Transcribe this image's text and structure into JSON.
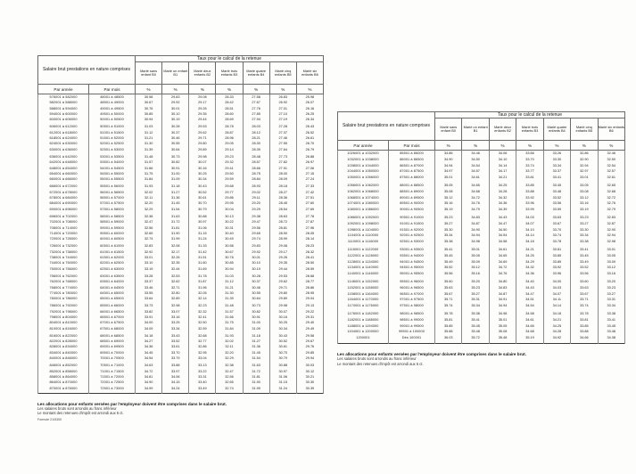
{
  "shared": {
    "salary_header": "Salaire brut prestations en nature comprises",
    "tax_header": "Taux pour le calcul de la retenue",
    "year_label": "Par année",
    "month_label": "Par mois",
    "percent": "%",
    "categories": [
      "Marié sans enfant B0",
      "Marié un enfant B1",
      "Marié deux enfants B2",
      "Marié trois enfants B3",
      "Marié quatre enfants B4",
      "Marié cinq enfants B5",
      "Marié six enfants B6"
    ]
  },
  "footnotes": {
    "line1": "Les allocations pour enfants versées par l'employeur doivent être comprises dans le salaire brut.",
    "line2": "Les salaires bruts sont arrondis au franc inférieur",
    "line3": "Le montant des retenues d'impôt est arrondi aux 5 ct.",
    "formule": "Formule 21/5300"
  },
  "left_table": {
    "rows": [
      [
        "576001 à 582000",
        "48001 à 48500",
        "30.58",
        "29.83",
        "29.08",
        "28.33",
        "27.58",
        "26.83",
        "25.98"
      ],
      [
        "582001 à 588000",
        "48501 à 49000",
        "30.67",
        "29.92",
        "29.17",
        "28.42",
        "27.67",
        "26.92",
        "26.07"
      ],
      [
        "588001 à 594000",
        "49001 à 49500",
        "30.76",
        "30.01",
        "29.26",
        "28.51",
        "27.76",
        "27.01",
        "26.16"
      ],
      [
        "594001 à 600000",
        "49501 à 50000",
        "30.85",
        "30.10",
        "29.35",
        "28.60",
        "27.85",
        "27.10",
        "26.25"
      ],
      [
        "600001 à 606000",
        "50001 à 50500",
        "30.94",
        "30.19",
        "29.44",
        "28.69",
        "27.94",
        "27.19",
        "26.34"
      ],
      [
        "606001 à 612000",
        "50501 à 51000",
        "31.03",
        "30.28",
        "29.53",
        "28.78",
        "28.03",
        "27.28",
        "26.43"
      ],
      [
        "612001 à 618000",
        "51001 à 51500",
        "31.12",
        "30.37",
        "29.62",
        "28.87",
        "28.12",
        "27.37",
        "26.52"
      ],
      [
        "618001 à 624000",
        "51501 à 52000",
        "31.21",
        "30.46",
        "29.71",
        "28.96",
        "28.21",
        "27.46",
        "26.61"
      ],
      [
        "624001 à 630000",
        "52001 à 52500",
        "31.30",
        "30.55",
        "29.80",
        "29.05",
        "28.30",
        "27.55",
        "26.70"
      ],
      [
        "630001 à 636000",
        "52501 à 53000",
        "31.39",
        "30.64",
        "29.89",
        "29.14",
        "28.39",
        "27.64",
        "26.79"
      ],
      [
        "636001 à 642000",
        "53001 à 53500",
        "31.48",
        "30.73",
        "29.98",
        "29.23",
        "28.48",
        "27.73",
        "26.88"
      ],
      [
        "642001 à 648000",
        "53501 à 54000",
        "31.57",
        "30.82",
        "30.07",
        "29.32",
        "28.57",
        "27.82",
        "26.97"
      ],
      [
        "648001 à 654000",
        "54001 à 54500",
        "31.66",
        "30.91",
        "30.16",
        "29.41",
        "28.66",
        "27.91",
        "27.06"
      ],
      [
        "654001 à 660000",
        "54501 à 55000",
        "31.75",
        "31.00",
        "30.25",
        "29.50",
        "28.75",
        "28.00",
        "27.15"
      ],
      [
        "660001 à 666000",
        "55001 à 55500",
        "31.84",
        "31.09",
        "30.34",
        "29.59",
        "28.84",
        "28.09",
        "27.24"
      ],
      [
        "666001 à 672000",
        "55501 à 56000",
        "31.93",
        "31.18",
        "30.43",
        "29.68",
        "28.93",
        "28.18",
        "27.33"
      ],
      [
        "672001 à 678000",
        "56001 à 56500",
        "32.02",
        "31.27",
        "30.52",
        "29.77",
        "29.02",
        "28.27",
        "27.42"
      ],
      [
        "678001 à 684000",
        "56501 à 57000",
        "32.11",
        "31.36",
        "30.61",
        "29.86",
        "29.11",
        "28.36",
        "27.51"
      ],
      [
        "684001 à 690000",
        "57001 à 57500",
        "32.20",
        "31.45",
        "30.70",
        "29.95",
        "29.20",
        "28.45",
        "27.60"
      ],
      [
        "690001 à 696000",
        "57501 à 58000",
        "32.29",
        "31.54",
        "30.79",
        "30.04",
        "29.29",
        "28.54",
        "27.69"
      ],
      [
        "696001 à 702000",
        "58001 à 58500",
        "32.38",
        "31.63",
        "30.88",
        "30.13",
        "29.38",
        "28.63",
        "27.78"
      ],
      [
        "702001 à 708000",
        "58501 à 59000",
        "32.47",
        "31.72",
        "30.97",
        "30.22",
        "29.47",
        "28.72",
        "27.87"
      ],
      [
        "708001 à 714000",
        "59001 à 59500",
        "32.56",
        "31.81",
        "31.06",
        "30.31",
        "29.56",
        "28.81",
        "27.96"
      ],
      [
        "714001 à 720000",
        "59501 à 60000",
        "32.65",
        "31.90",
        "31.15",
        "30.40",
        "29.65",
        "28.90",
        "28.05"
      ],
      [
        "720001 à 726000",
        "60001 à 60500",
        "32.74",
        "31.99",
        "31.24",
        "30.49",
        "29.74",
        "28.99",
        "28.14"
      ],
      [
        "726001 à 732000",
        "60501 à 61000",
        "32.83",
        "32.08",
        "31.33",
        "30.58",
        "29.83",
        "29.08",
        "28.23"
      ],
      [
        "732001 à 738000",
        "61001 à 61500",
        "32.92",
        "32.17",
        "31.42",
        "30.67",
        "29.92",
        "29.17",
        "28.32"
      ],
      [
        "738001 à 744000",
        "61501 à 62000",
        "33.01",
        "32.26",
        "31.51",
        "30.76",
        "30.01",
        "29.26",
        "28.41"
      ],
      [
        "744001 à 750000",
        "62001 à 62500",
        "33.10",
        "32.35",
        "31.60",
        "30.85",
        "30.10",
        "29.35",
        "28.50"
      ],
      [
        "750001 à 756000",
        "62501 à 63000",
        "33.19",
        "32.44",
        "31.69",
        "30.94",
        "30.19",
        "29.44",
        "28.59"
      ],
      [
        "756001 à 762000",
        "63001 à 63500",
        "33.28",
        "32.53",
        "31.78",
        "31.03",
        "30.28",
        "29.53",
        "28.68"
      ],
      [
        "762001 à 768000",
        "63501 à 64000",
        "33.37",
        "32.62",
        "31.87",
        "31.12",
        "30.37",
        "29.62",
        "28.77"
      ],
      [
        "768001 à 774000",
        "64001 à 64500",
        "33.46",
        "32.71",
        "31.96",
        "31.21",
        "30.46",
        "29.71",
        "28.86"
      ],
      [
        "774001 à 780000",
        "64501 à 65000",
        "33.55",
        "32.80",
        "32.05",
        "31.30",
        "30.55",
        "29.80",
        "28.95"
      ],
      [
        "780001 à 786000",
        "65001 à 65500",
        "33.64",
        "32.89",
        "32.14",
        "31.39",
        "30.64",
        "29.89",
        "29.04"
      ],
      [
        "786001 à 792000",
        "65501 à 66000",
        "33.73",
        "32.98",
        "32.23",
        "31.48",
        "30.73",
        "29.98",
        "29.13"
      ],
      [
        "792001 à 798000",
        "66001 à 66500",
        "33.82",
        "33.07",
        "32.32",
        "31.57",
        "30.82",
        "30.07",
        "29.22"
      ],
      [
        "798001 à 804000",
        "66501 à 67000",
        "33.91",
        "33.16",
        "32.41",
        "31.66",
        "30.91",
        "30.16",
        "29.31"
      ],
      [
        "804001 à 810000",
        "67001 à 67500",
        "34.00",
        "33.25",
        "32.50",
        "31.75",
        "31.00",
        "30.25",
        "29.40"
      ],
      [
        "810001 à 816000",
        "67501 à 68000",
        "34.09",
        "33.34",
        "32.59",
        "31.84",
        "31.09",
        "30.34",
        "29.49"
      ],
      [
        "816001 à 822000",
        "68001 à 68500",
        "34.18",
        "33.43",
        "32.68",
        "31.93",
        "31.18",
        "30.43",
        "29.58"
      ],
      [
        "822001 à 828000",
        "68501 à 69000",
        "34.27",
        "33.52",
        "32.77",
        "32.02",
        "31.27",
        "30.52",
        "29.67"
      ],
      [
        "828001 à 834000",
        "69001 à 69500",
        "34.36",
        "33.61",
        "32.86",
        "32.11",
        "31.36",
        "30.61",
        "29.76"
      ],
      [
        "834001 à 840000",
        "69501 à 70000",
        "34.45",
        "33.70",
        "32.95",
        "32.20",
        "31.45",
        "30.70",
        "29.85"
      ],
      [
        "840001 à 846000",
        "70001 à 70500",
        "34.54",
        "33.79",
        "33.04",
        "32.29",
        "31.54",
        "30.79",
        "29.94"
      ],
      [
        "846001 à 852000",
        "70501 à 71000",
        "34.63",
        "33.88",
        "33.13",
        "32.38",
        "31.63",
        "30.88",
        "30.03"
      ],
      [
        "852001 à 858000",
        "71001 à 71500",
        "34.72",
        "33.97",
        "33.22",
        "32.47",
        "31.72",
        "30.97",
        "30.12"
      ],
      [
        "858001 à 864000",
        "71501 à 72000",
        "34.81",
        "34.06",
        "33.31",
        "32.56",
        "31.81",
        "31.06",
        "30.21"
      ],
      [
        "864001 à 870000",
        "72001 à 72500",
        "34.90",
        "34.15",
        "33.40",
        "32.65",
        "31.90",
        "31.15",
        "30.30"
      ],
      [
        "870001 à 876000",
        "72501 à 73000",
        "34.99",
        "34.24",
        "33.49",
        "32.74",
        "31.99",
        "31.24",
        "30.39"
      ]
    ]
  },
  "right_table": {
    "rows": [
      [
        "1026001 à 1032000",
        "85501 à 86000",
        "34.86",
        "34.46",
        "34.06",
        "33.66",
        "33.26",
        "32.86",
        "32.46"
      ],
      [
        "1032001 à 1038000",
        "86001 à 86500",
        "34.90",
        "34.50",
        "34.10",
        "33.70",
        "33.30",
        "32.90",
        "32.50"
      ],
      [
        "1038001 à 1044000",
        "86501 à 87000",
        "34.94",
        "34.54",
        "34.14",
        "33.74",
        "33.34",
        "32.94",
        "32.54"
      ],
      [
        "1044001 à 1050000",
        "87001 à 87500",
        "34.97",
        "34.57",
        "34.17",
        "33.77",
        "33.37",
        "32.97",
        "32.57"
      ],
      [
        "1050001 à 1056000",
        "87501 à 88000",
        "35.01",
        "34.61",
        "34.21",
        "33.81",
        "33.41",
        "33.01",
        "32.61"
      ],
      [
        "1056001 à 1062000",
        "88001 à 88500",
        "35.05",
        "34.65",
        "34.25",
        "33.85",
        "33.45",
        "33.05",
        "32.65"
      ],
      [
        "1062001 à 1068000",
        "88501 à 89000",
        "35.08",
        "34.68",
        "34.28",
        "33.88",
        "33.48",
        "33.08",
        "32.68"
      ],
      [
        "1068001 à 1074000",
        "89001 à 89500",
        "35.12",
        "34.72",
        "34.32",
        "33.92",
        "33.52",
        "33.12",
        "32.72"
      ],
      [
        "1074001 à 1080000",
        "89501 à 90000",
        "35.16",
        "34.76",
        "34.36",
        "33.96",
        "33.56",
        "33.16",
        "32.76"
      ],
      [
        "1080001 à 1086000",
        "90001 à 90500",
        "35.19",
        "34.79",
        "34.39",
        "33.99",
        "33.59",
        "33.19",
        "32.79"
      ],
      [
        "1086001 à 1092000",
        "90501 à 91000",
        "35.23",
        "34.83",
        "34.43",
        "34.03",
        "33.63",
        "33.23",
        "32.83"
      ],
      [
        "1092001 à 1098000",
        "91001 à 91500",
        "35.27",
        "34.87",
        "34.47",
        "34.07",
        "33.67",
        "33.27",
        "32.87"
      ],
      [
        "1098001 à 1104000",
        "91501 à 92000",
        "35.30",
        "34.90",
        "34.50",
        "34.10",
        "33.70",
        "33.30",
        "32.90"
      ],
      [
        "1104001 à 1110000",
        "92001 à 92500",
        "35.34",
        "34.94",
        "34.54",
        "34.14",
        "33.74",
        "33.34",
        "32.94"
      ],
      [
        "1110001 à 1116000",
        "92501 à 93000",
        "35.38",
        "34.98",
        "34.58",
        "34.18",
        "33.78",
        "33.38",
        "32.98"
      ],
      [
        "1116001 à 1122000",
        "93001 à 93500",
        "35.41",
        "35.01",
        "34.61",
        "34.21",
        "33.81",
        "33.41",
        "33.01"
      ],
      [
        "1122001 à 1128000",
        "93501 à 94000",
        "35.45",
        "35.05",
        "34.65",
        "34.25",
        "33.85",
        "33.45",
        "33.05"
      ],
      [
        "1128001 à 1134000",
        "94001 à 94500",
        "35.49",
        "35.09",
        "34.69",
        "34.29",
        "33.89",
        "33.49",
        "33.09"
      ],
      [
        "1134001 à 1140000",
        "94501 à 95000",
        "35.52",
        "35.12",
        "34.72",
        "34.32",
        "33.92",
        "33.52",
        "33.12"
      ],
      [
        "1140001 à 1146000",
        "95001 à 95500",
        "35.56",
        "35.16",
        "34.76",
        "34.36",
        "33.96",
        "33.56",
        "33.16"
      ],
      [
        "1146001 à 1152000",
        "95501 à 96000",
        "35.60",
        "35.20",
        "34.80",
        "34.40",
        "34.00",
        "33.60",
        "33.20"
      ],
      [
        "1152001 à 1158000",
        "96001 à 96500",
        "35.63",
        "35.23",
        "34.83",
        "34.43",
        "34.03",
        "33.63",
        "33.23"
      ],
      [
        "1158001 à 1164000",
        "96501 à 97000",
        "35.67",
        "35.27",
        "34.87",
        "34.47",
        "34.07",
        "33.67",
        "33.27"
      ],
      [
        "1164001 à 1170000",
        "97001 à 97500",
        "35.71",
        "35.31",
        "34.91",
        "34.51",
        "34.11",
        "33.71",
        "33.31"
      ],
      [
        "1170001 à 1176000",
        "97501 à 98000",
        "35.74",
        "35.34",
        "34.94",
        "34.54",
        "34.14",
        "33.74",
        "33.34"
      ],
      [
        "1176001 à 1182000",
        "98001 à 98500",
        "35.78",
        "35.38",
        "34.98",
        "34.58",
        "34.18",
        "33.78",
        "33.38"
      ],
      [
        "1182001 à 1188000",
        "98501 à 99000",
        "35.81",
        "35.41",
        "35.01",
        "34.61",
        "34.21",
        "33.81",
        "33.41"
      ],
      [
        "1188001 à 1194000",
        "99001 à 99500",
        "35.85",
        "35.45",
        "35.05",
        "34.65",
        "34.25",
        "33.85",
        "33.45"
      ],
      [
        "1194001 à 1200000",
        "99501 à 100000",
        "35.88",
        "35.48",
        "35.08",
        "34.68",
        "34.28",
        "33.88",
        "33.48"
      ],
      [
        "1200001",
        "Dès 100001",
        "36.03",
        "35.72",
        "35.48",
        "35.19",
        "34.92",
        "34.66",
        "34.38"
      ]
    ]
  }
}
